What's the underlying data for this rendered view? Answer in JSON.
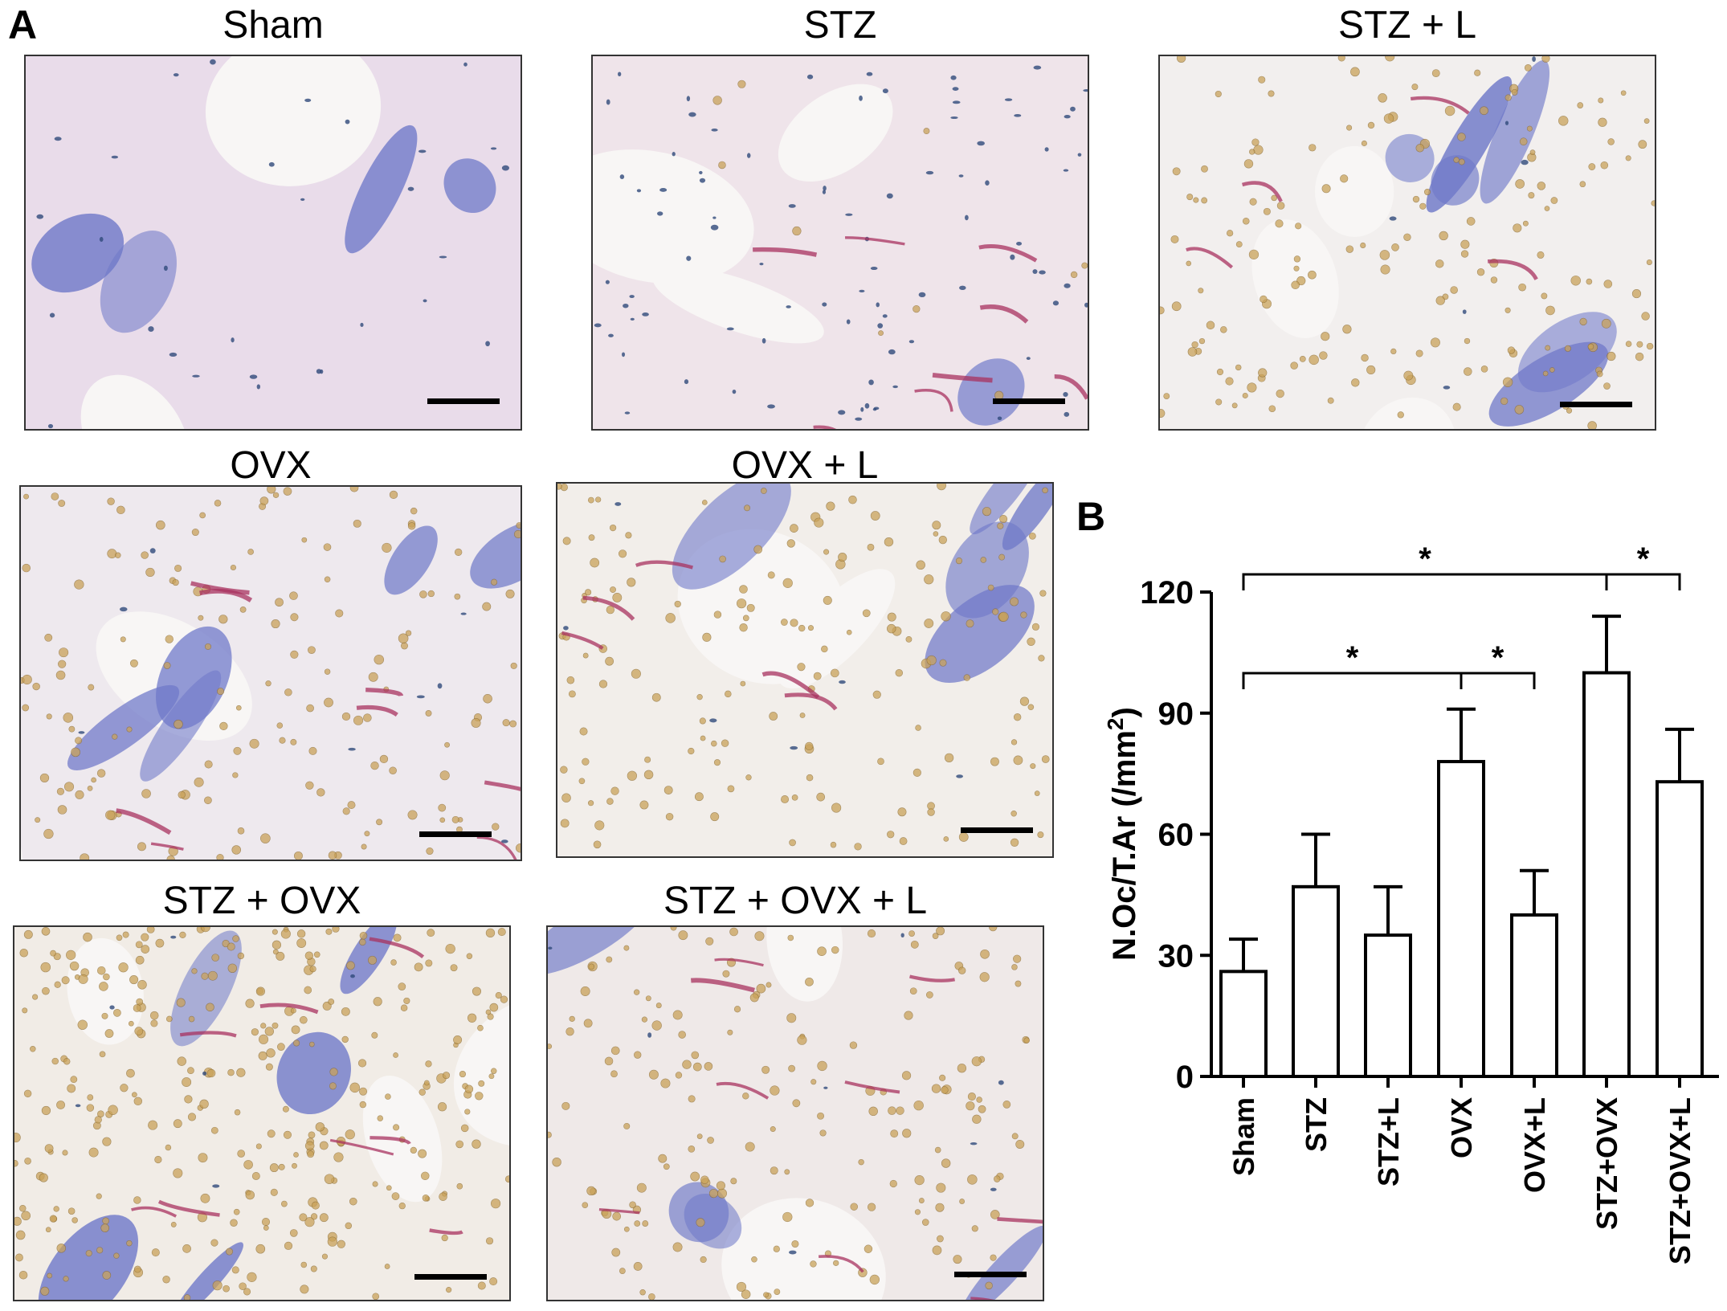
{
  "figure": {
    "panel_a_label": "A",
    "panel_b_label": "B",
    "micrographs": [
      {
        "title": "Sham",
        "stain": "sham"
      },
      {
        "title": "STZ",
        "stain": "stz"
      },
      {
        "title": "STZ + L",
        "stain": "stzl"
      },
      {
        "title": "OVX",
        "stain": "ovx"
      },
      {
        "title": "OVX + L",
        "stain": "ovxl"
      },
      {
        "title": "STZ + OVX",
        "stain": "stzovx"
      },
      {
        "title": "STZ + OVX + L",
        "stain": "stzovxl"
      }
    ],
    "colors": {
      "bone_pink": "#e9dcea",
      "matrix_blue": "#6f79c9",
      "cell_dark": "#2f4a7a",
      "rbc_yellow": "#c9a25a",
      "trap_red": "#a8325f",
      "background_white": "#f8f6f5"
    }
  },
  "chart_data": {
    "type": "bar",
    "categories": [
      "Sham",
      "STZ",
      "STZ+L",
      "OVX",
      "OVX+L",
      "STZ+OVX",
      "STZ+OVX+L"
    ],
    "values": [
      26,
      47,
      35,
      78,
      40,
      100,
      73
    ],
    "errors": [
      8,
      13,
      12,
      13,
      11,
      14,
      13
    ],
    "ylabel_main": "N.Oc/T.Ar (/mm",
    "ylabel_sup": "2",
    "ylabel_tail": ")",
    "ylim": [
      0,
      120
    ],
    "yticks": [
      "0",
      "30",
      "60",
      "90",
      "120"
    ],
    "significance": [
      {
        "from": 0,
        "to": 5,
        "label": "*"
      },
      {
        "from": 5,
        "to": 6,
        "label": "*"
      },
      {
        "from": 0,
        "to": 3,
        "label": "*"
      },
      {
        "from": 3,
        "to": 4,
        "label": "*"
      }
    ],
    "bar_fill": "#ffffff",
    "bar_stroke": "#000000"
  }
}
